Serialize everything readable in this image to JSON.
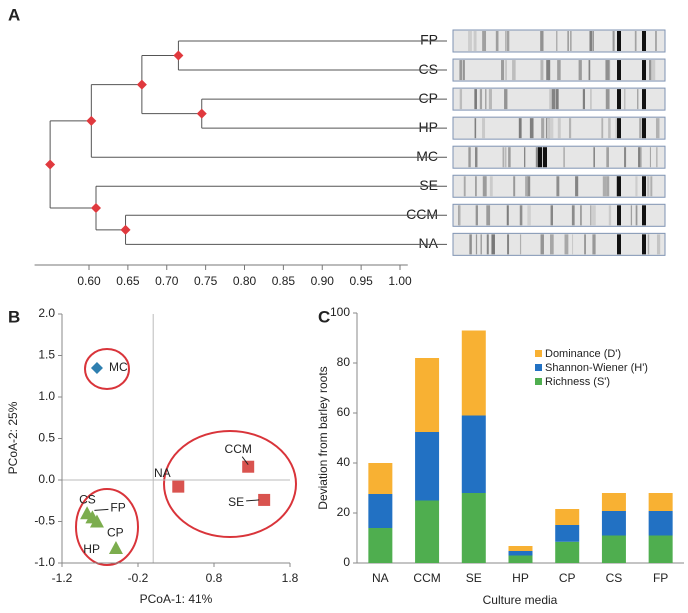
{
  "chart_data": [
    {
      "type": "dendrogram",
      "panel": "A",
      "leaves": [
        "FP",
        "CS",
        "CP",
        "HP",
        "MC",
        "SE",
        "CCM",
        "NA"
      ],
      "nodes": [
        {
          "children": [
            "FP",
            "CS"
          ],
          "x": 0.715
        },
        {
          "children": [
            "CP",
            "HP"
          ],
          "x": 0.745
        },
        {
          "children": [
            0,
            1
          ],
          "x": 0.668
        },
        {
          "children": [
            2,
            "MC"
          ],
          "x": 0.603
        },
        {
          "children": [
            "CCM",
            "NA"
          ],
          "x": 0.647
        },
        {
          "children": [
            "SE",
            4
          ],
          "x": 0.609
        },
        {
          "children": [
            3,
            5
          ],
          "x": 0.55
        }
      ],
      "xlim": [
        0.53,
        1.01
      ],
      "xticks": [
        {
          "value": 0.6,
          "label": "0.60"
        },
        {
          "value": 0.65,
          "label": "0.65"
        },
        {
          "value": 0.7,
          "label": "0.70"
        },
        {
          "value": 0.75,
          "label": "0.75"
        },
        {
          "value": 0.8,
          "label": "0.80"
        },
        {
          "value": 0.85,
          "label": "0.85"
        },
        {
          "value": 0.9,
          "label": "0.90"
        },
        {
          "value": 0.95,
          "label": "0.95"
        },
        {
          "value": 1.0,
          "label": "1.00"
        }
      ],
      "marker_color": "#e0393e"
    },
    {
      "type": "scatter",
      "panel": "B",
      "xlabel": "PCoA-1: 41%",
      "ylabel": "PCoA-2: 25%",
      "points": [
        {
          "label": "MC",
          "x": -0.74,
          "y": 1.35,
          "marker": "diamond",
          "color": "#2e7fb0"
        },
        {
          "label": "NA",
          "x": 0.33,
          "y": -0.08,
          "marker": "square",
          "color": "#d9534f"
        },
        {
          "label": "CCM",
          "x": 1.25,
          "y": 0.16,
          "marker": "square",
          "color": "#d9534f"
        },
        {
          "label": "SE",
          "x": 1.46,
          "y": -0.24,
          "marker": "square",
          "color": "#d9534f"
        },
        {
          "label": "CS",
          "x": -0.87,
          "y": -0.4,
          "marker": "triangle",
          "color": "#7cad4e"
        },
        {
          "label": "FP",
          "x": -0.8,
          "y": -0.45,
          "marker": "triangle",
          "color": "#7cad4e"
        },
        {
          "label": "CP",
          "x": -0.74,
          "y": -0.5,
          "marker": "triangle",
          "color": "#7cad4e"
        },
        {
          "label": "HP",
          "x": -0.49,
          "y": -0.82,
          "marker": "triangle",
          "color": "#7cad4e"
        }
      ],
      "xlim": [
        -1.2,
        1.8
      ],
      "xticks": [
        -1.2,
        -0.2,
        0.8,
        1.8
      ],
      "ylim": [
        -1,
        2
      ],
      "yticks": [
        {
          "value": -1,
          "label": "-1.0"
        },
        -0.5,
        {
          "value": 0,
          "label": "0.0"
        },
        0.5,
        {
          "value": 1,
          "label": "1.0"
        },
        1.5,
        {
          "value": 2,
          "label": "2.0"
        }
      ]
    },
    {
      "type": "bar",
      "stacked": true,
      "panel": "C",
      "xlabel": "Culture media",
      "ylabel": "Deviation from barley roots",
      "categories": [
        "NA",
        "CCM",
        "SE",
        "HP",
        "CP",
        "CS",
        "FP"
      ],
      "series": [
        {
          "name": "Richness (S')",
          "color": "#4fae4f",
          "values": [
            14,
            25,
            28,
            3,
            8.5,
            11,
            11
          ]
        },
        {
          "name": "Shannon-Wiener (H')",
          "color": "#2271c3",
          "values": [
            13.6,
            27.4,
            31,
            1.8,
            6.7,
            9.8,
            9.8
          ]
        },
        {
          "name": "Dominance (D')",
          "color": "#f8b133",
          "values": [
            12.4,
            29.6,
            34,
            2,
            6.4,
            7.2,
            7.2
          ]
        }
      ],
      "ylim": [
        0,
        100
      ],
      "yticks": [
        0,
        20,
        40,
        60,
        80,
        100
      ],
      "legend": "top-right"
    }
  ]
}
